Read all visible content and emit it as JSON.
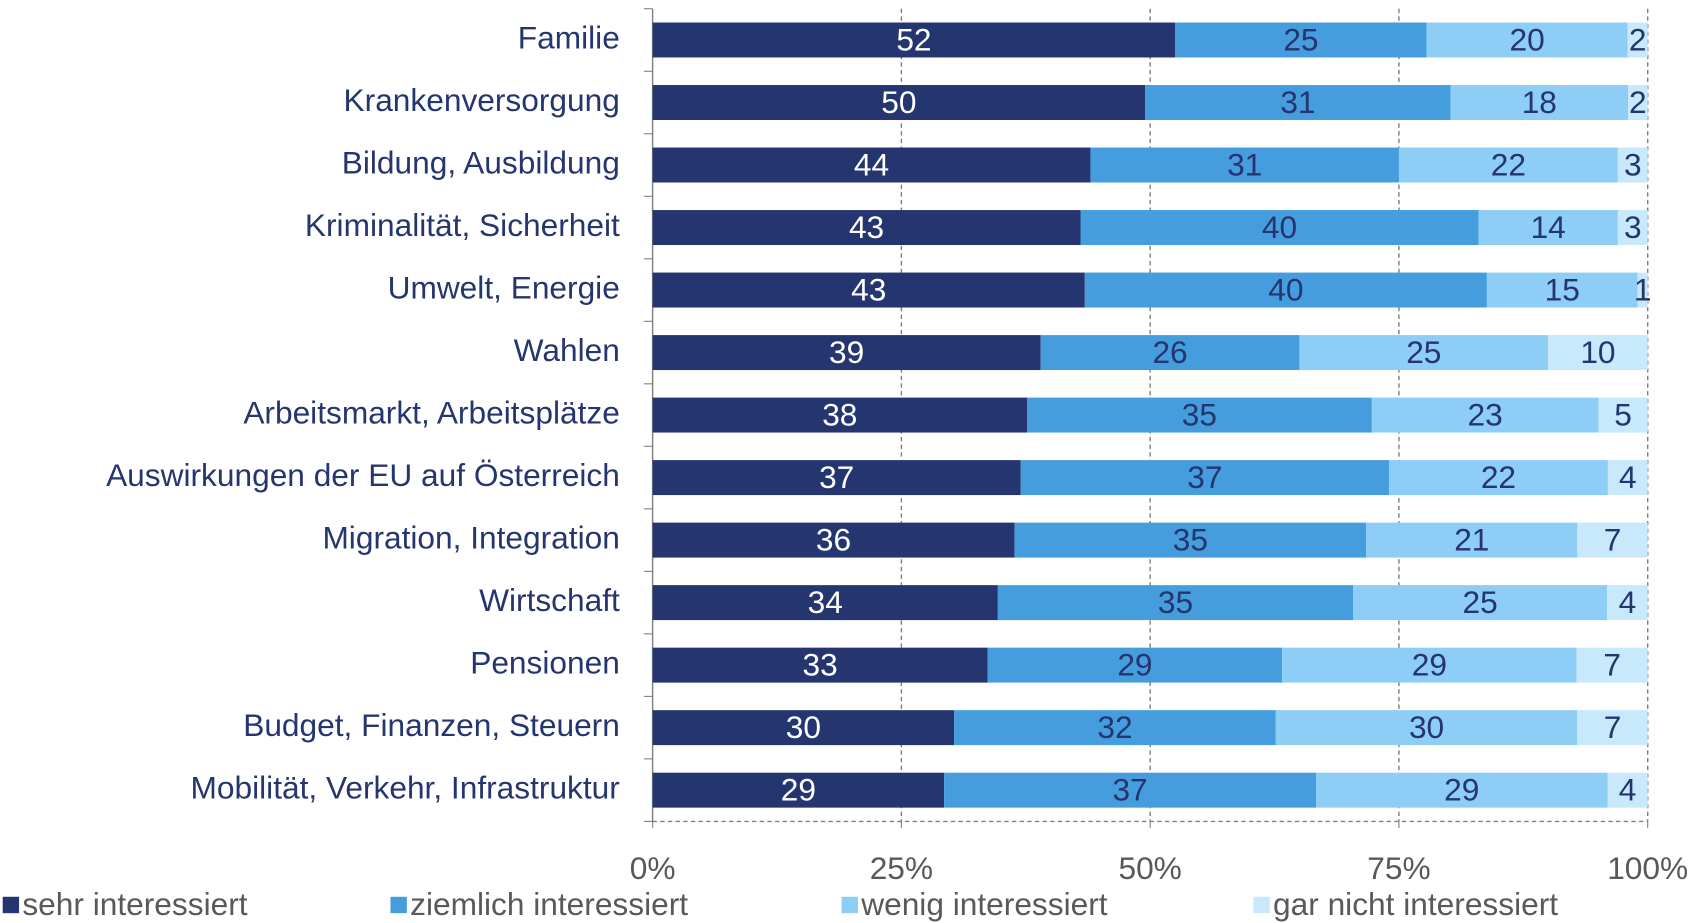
{
  "chart_data": {
    "type": "bar",
    "orientation": "horizontal",
    "stacked": "percent",
    "categories": [
      "Familie",
      "Krankenversorgung",
      "Bildung, Ausbildung",
      "Kriminalität, Sicherheit",
      "Umwelt, Energie",
      "Wahlen",
      "Arbeitsmarkt, Arbeitsplätze",
      "Auswirkungen der EU auf Österreich",
      "Migration, Integration",
      "Wirtschaft",
      "Pensionen",
      "Budget, Finanzen, Steuern",
      "Mobilität, Verkehr, Infrastruktur"
    ],
    "series": [
      {
        "name": "sehr interessiert",
        "color": "#253570",
        "label_color": "#ffffff",
        "values": [
          52,
          50,
          44,
          43,
          43,
          39,
          38,
          37,
          36,
          34,
          33,
          30,
          29
        ]
      },
      {
        "name": "ziemlich interessiert",
        "color": "#459ddd",
        "label_color": "#253570",
        "values": [
          25,
          31,
          31,
          40,
          40,
          26,
          35,
          37,
          35,
          35,
          29,
          32,
          37
        ]
      },
      {
        "name": "wenig interessiert",
        "color": "#8dcdf6",
        "label_color": "#253570",
        "values": [
          20,
          18,
          22,
          14,
          15,
          25,
          23,
          22,
          21,
          25,
          29,
          30,
          29
        ]
      },
      {
        "name": "gar nicht interessiert",
        "color": "#c8e9fb",
        "label_color": "#253570",
        "values": [
          2,
          2,
          3,
          3,
          1,
          10,
          5,
          4,
          7,
          4,
          7,
          7,
          4
        ]
      }
    ],
    "xlim": [
      0,
      100
    ],
    "xticks": [
      {
        "value": 0,
        "label": "0%"
      },
      {
        "value": 25,
        "label": "25%"
      },
      {
        "value": 50,
        "label": "50%"
      },
      {
        "value": 75,
        "label": "75%"
      },
      {
        "value": 100,
        "label": "100%"
      }
    ],
    "grid": true,
    "legend": "bottom"
  }
}
